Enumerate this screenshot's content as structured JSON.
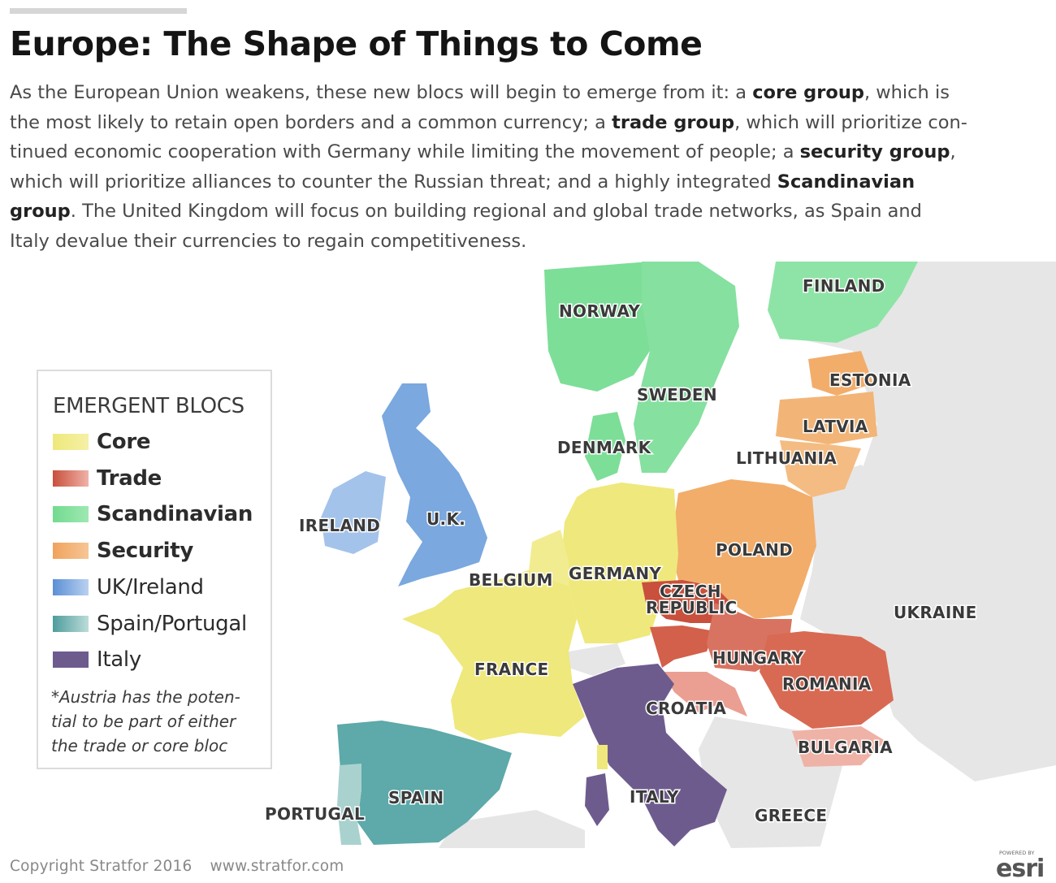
{
  "title": "Europe: The Shape of Things to Come",
  "intro": {
    "l1a": "As the European Union weakens, these new blocs will begin to emerge from it: a ",
    "l1b": "core group",
    "l1c": ", which is",
    "l2a": "the most likely to retain open borders and a common currency; a ",
    "l2b": "trade group",
    "l2c": ", which will prioritize con-",
    "l3a": "tinued economic cooperation with Germany while limiting the movement of people; a ",
    "l3b": "security group",
    "l3c": ",",
    "l4a": "which will prioritize alliances to counter the Russian threat; and a highly integrated ",
    "l4b": "Scandinavian",
    "l5a": "group",
    "l5b": ". The United Kingdom will focus on building regional and global trade networks, as Spain and",
    "l6": "Italy devalue their currencies to regain competitiveness."
  },
  "legend": {
    "title": "EMERGENT BLOCS",
    "items": [
      {
        "label": "Core",
        "color": "#efe87c"
      },
      {
        "label": "Trade",
        "color": "#cf5c45"
      },
      {
        "label": "Scandinavian",
        "color": "#7dde98"
      },
      {
        "label": "Security",
        "color": "#f2ad6a"
      },
      {
        "label": "UK/Ireland",
        "color": "#6f9fdc"
      },
      {
        "label": "Spain/Portugal",
        "color": "#5ea9aa"
      },
      {
        "label": "Italy",
        "color": "#6e5b8e"
      }
    ],
    "note": "*Austria has the poten-tial to be part of either the trade or core bloc"
  },
  "map": {
    "background_color": "#e6e6e6",
    "sea_color": "#ffffff",
    "country_labels": {
      "finland": "FINLAND",
      "norway": "NORWAY",
      "sweden": "SWEDEN",
      "estonia": "ESTONIA",
      "latvia": "LATVIA",
      "lithuania": "LITHUANIA",
      "denmark": "DENMARK",
      "ireland": "IRELAND",
      "uk": "U.K.",
      "poland": "POLAND",
      "belgium": "BELGIUM",
      "germany": "GERMANY",
      "czech_1": "CZECH",
      "czech_2": "REPUBLIC",
      "ukraine": "UKRAINE",
      "hungary": "HUNGARY",
      "france": "FRANCE",
      "romania": "ROMANIA",
      "croatia": "CROATIA",
      "bulgaria": "BULGARIA",
      "spain": "SPAIN",
      "italy": "ITALY",
      "portugal": "PORTUGAL",
      "greece": "GREECE"
    }
  },
  "footer": {
    "copyright": "Copyright Stratfor 2016",
    "url": "www.stratfor.com",
    "esri_powered": "POWERED BY",
    "esri": "esri"
  }
}
